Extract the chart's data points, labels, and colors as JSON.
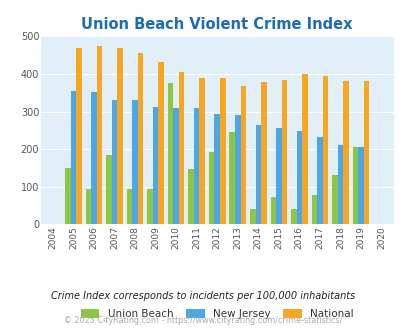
{
  "title": "Union Beach Violent Crime Index",
  "years": [
    2004,
    2005,
    2006,
    2007,
    2008,
    2009,
    2010,
    2011,
    2012,
    2013,
    2014,
    2015,
    2016,
    2017,
    2018,
    2019,
    2020
  ],
  "union_beach": [
    null,
    150,
    95,
    185,
    95,
    95,
    375,
    147,
    193,
    245,
    40,
    73,
    40,
    77,
    132,
    205,
    null
  ],
  "new_jersey": [
    null,
    355,
    352,
    330,
    330,
    312,
    310,
    310,
    294,
    290,
    263,
    257,
    248,
    232,
    210,
    207,
    null
  ],
  "national": [
    null,
    470,
    473,
    468,
    456,
    432,
    405,
    388,
    388,
    368,
    378,
    384,
    399,
    394,
    381,
    380,
    null
  ],
  "union_beach_color": "#8dc63f",
  "new_jersey_color": "#4da6e8",
  "national_color": "#f5a623",
  "bg_color": "#e0eff8",
  "ylim": [
    0,
    500
  ],
  "yticks": [
    0,
    100,
    200,
    300,
    400,
    500
  ],
  "legend_labels": [
    "Union Beach",
    "New Jersey",
    "National"
  ],
  "footnote1": "Crime Index corresponds to incidents per 100,000 inhabitants",
  "footnote2": "© 2025 CityRating.com - https://www.cityrating.com/crime-statistics/",
  "title_color": "#1a6db5",
  "footnote1_color": "#222222",
  "footnote2_color": "#aaaaaa"
}
